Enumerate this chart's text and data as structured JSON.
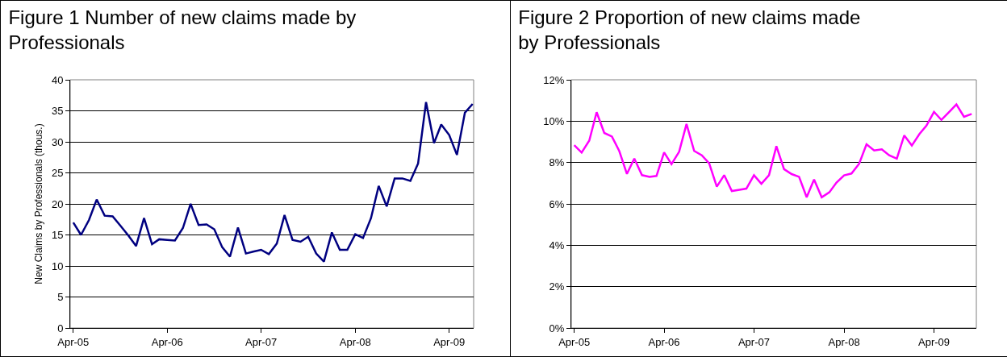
{
  "chart_data": [
    {
      "type": "line",
      "title": "Figure 1 Number of new claims made by Professionals",
      "ylabel": "New Claims by Professionals (thous.)",
      "x": [
        "2005-04",
        "2005-05",
        "2005-06",
        "2005-07",
        "2005-08",
        "2005-09",
        "2005-10",
        "2005-11",
        "2005-12",
        "2006-01",
        "2006-02",
        "2006-03",
        "2006-04",
        "2006-05",
        "2006-06",
        "2006-07",
        "2006-08",
        "2006-09",
        "2006-10",
        "2006-11",
        "2006-12",
        "2007-01",
        "2007-02",
        "2007-03",
        "2007-04",
        "2007-05",
        "2007-06",
        "2007-07",
        "2007-08",
        "2007-09",
        "2007-10",
        "2007-11",
        "2007-12",
        "2008-01",
        "2008-02",
        "2008-03",
        "2008-04",
        "2008-05",
        "2008-06",
        "2008-07",
        "2008-08",
        "2008-09",
        "2008-10",
        "2008-11",
        "2008-12",
        "2009-01",
        "2009-02",
        "2009-03",
        "2009-04",
        "2009-05",
        "2009-06",
        "2009-07"
      ],
      "values": [
        17.0,
        15.0,
        17.4,
        20.7,
        18.1,
        18.0,
        16.5,
        14.9,
        13.2,
        17.7,
        13.5,
        14.3,
        14.2,
        14.1,
        16.1,
        20.0,
        16.6,
        16.7,
        15.9,
        13.0,
        11.5,
        16.2,
        12.0,
        12.3,
        12.6,
        11.9,
        13.6,
        18.2,
        14.2,
        13.9,
        14.7,
        12.0,
        10.7,
        15.4,
        12.6,
        12.6,
        15.1,
        14.5,
        17.7,
        22.9,
        19.6,
        24.1,
        24.1,
        23.7,
        26.5,
        36.4,
        29.8,
        32.8,
        31.1,
        27.9,
        34.7,
        36.1
      ],
      "color": "#000080",
      "xlim": [
        "2005-03-20",
        "2009-07-05"
      ],
      "xticks": [
        {
          "value": "2005-04",
          "label": "Apr-05"
        },
        {
          "value": "2006-04",
          "label": "Apr-06"
        },
        {
          "value": "2007-04",
          "label": "Apr-07"
        },
        {
          "value": "2008-04",
          "label": "Apr-08"
        },
        {
          "value": "2009-04",
          "label": "Apr-09"
        }
      ],
      "ylim": [
        0,
        40
      ],
      "yticks": [
        0,
        5,
        10,
        15,
        20,
        25,
        30,
        35,
        40
      ],
      "grid": "y"
    },
    {
      "type": "line",
      "title": "Figure 2 Proportion of new claims made by Professionals",
      "x": [
        "2005-04",
        "2005-05",
        "2005-06",
        "2005-07",
        "2005-08",
        "2005-09",
        "2005-10",
        "2005-11",
        "2005-12",
        "2006-01",
        "2006-02",
        "2006-03",
        "2006-04",
        "2006-05",
        "2006-06",
        "2006-07",
        "2006-08",
        "2006-09",
        "2006-10",
        "2006-11",
        "2006-12",
        "2007-01",
        "2007-02",
        "2007-03",
        "2007-04",
        "2007-05",
        "2007-06",
        "2007-07",
        "2007-08",
        "2007-09",
        "2007-10",
        "2007-11",
        "2007-12",
        "2008-01",
        "2008-02",
        "2008-03",
        "2008-04",
        "2008-05",
        "2008-06",
        "2008-07",
        "2008-08",
        "2008-09",
        "2008-10",
        "2008-11",
        "2008-12",
        "2009-01",
        "2009-02",
        "2009-03",
        "2009-04",
        "2009-05",
        "2009-06",
        "2009-07",
        "2009-08",
        "2009-09"
      ],
      "values": [
        8.84,
        8.48,
        9.06,
        10.43,
        9.43,
        9.26,
        8.55,
        7.45,
        8.19,
        7.39,
        7.31,
        7.35,
        8.49,
        7.92,
        8.52,
        9.86,
        8.56,
        8.35,
        7.96,
        6.83,
        7.39,
        6.62,
        6.68,
        6.74,
        7.39,
        6.97,
        7.39,
        8.79,
        7.68,
        7.44,
        7.31,
        6.32,
        7.18,
        6.32,
        6.56,
        7.03,
        7.38,
        7.47,
        7.94,
        8.88,
        8.58,
        8.64,
        8.35,
        8.19,
        9.31,
        8.82,
        9.38,
        9.78,
        10.45,
        10.06,
        10.44,
        10.81,
        10.21,
        10.35
      ],
      "color": "#ff00ff",
      "xlim": [
        "2005-03-20",
        "2009-09-20"
      ],
      "xticks": [
        {
          "value": "2005-04",
          "label": "Apr-05"
        },
        {
          "value": "2006-04",
          "label": "Apr-06"
        },
        {
          "value": "2007-04",
          "label": "Apr-07"
        },
        {
          "value": "2008-04",
          "label": "Apr-08"
        },
        {
          "value": "2009-04",
          "label": "Apr-09"
        }
      ],
      "ylim": [
        0,
        12
      ],
      "yticks": [
        {
          "value": 0,
          "label": "0%"
        },
        {
          "value": 2,
          "label": "2%"
        },
        {
          "value": 4,
          "label": "4%"
        },
        {
          "value": 6,
          "label": "6%"
        },
        {
          "value": 8,
          "label": "8%"
        },
        {
          "value": 10,
          "label": "10%"
        },
        {
          "value": 12,
          "label": "12%"
        }
      ],
      "grid": "y"
    }
  ]
}
